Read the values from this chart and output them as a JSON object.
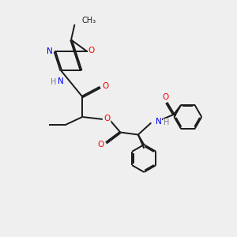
{
  "bg_color": "#efefef",
  "bond_color": "#1a1a1a",
  "N_color": "#0000ff",
  "O_color": "#ff0000",
  "H_color": "#7f7f7f",
  "lw": 1.4,
  "dbo": 0.028,
  "xlim": [
    0,
    10
  ],
  "ylim": [
    0,
    10
  ]
}
